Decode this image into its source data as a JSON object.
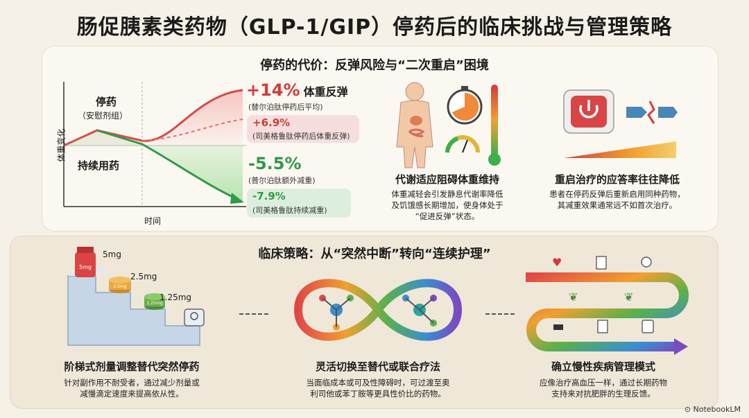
{
  "title": "肠促胰素类药物（GLP-1/GIP）停药后的临床挑战与管理策略",
  "top": {
    "section_title": "停药的代价：反弹风险与“二次重启”困境",
    "chart": {
      "y_label": "体重变化",
      "x_label": "时间",
      "stop_label": "停药",
      "stop_sub": "（安慰剂组）",
      "continue_label": "持续用药",
      "rebound_value": "+14%",
      "rebound_title": "体重反弹",
      "rebound_sub": "(替尔泊肽停药后平均)",
      "sema_rebound_value": "+6.9%",
      "sema_rebound_sub": "(司美格鲁肽停药后体重反弹)",
      "extra_loss_value": "-5.5%",
      "extra_loss_sub": "(普尔泊肽额外减重)",
      "sema_loss_value": "-7.9%",
      "sema_loss_sub": "(司美格鲁肽持续减重)",
      "colors": {
        "rebound": "#d23b3b",
        "loss": "#2f9b48"
      }
    },
    "metabolic": {
      "title": "代谢适应阻碍体重维持",
      "desc": [
        "体重减轻会引发静息代谢率降低",
        "及饥饿感长期增加，使身体处于",
        "“促进反弹”状态。"
      ]
    },
    "restart": {
      "title": "重启治疗的应答率往往降低",
      "desc": [
        "患者在停药反弹后重新启用同种药物，",
        "其减重效果通常远不如首次治疗。"
      ]
    }
  },
  "bottom": {
    "section_title": "临床策略：从“突然中断”转向“连续护理”",
    "steps": {
      "doses": [
        "5mg",
        "2.5mg",
        "1.25mg"
      ],
      "jar_labels": [
        "5mg",
        "2.5mg",
        "1.25mg"
      ],
      "title": "阶梯式剂量调整替代突然停药",
      "desc": [
        "针对副作用不耐受者，通过减少剂量或",
        "减慢滴定速度来提高依从性。"
      ]
    },
    "switch": {
      "title": "灵活切换至替代或联合疗法",
      "desc": [
        "当面临成本或可及性障碍时，可过渡至奥",
        "利司他或苯丁胺等更具性价比的药物。"
      ]
    },
    "chronic": {
      "title": "确立慢性疾病管理模式",
      "desc": [
        "应像治疗高血压一样，通过长期药物",
        "支持来对抗肥胖的生理反馈。"
      ]
    }
  },
  "watermark": "NotebookLM"
}
